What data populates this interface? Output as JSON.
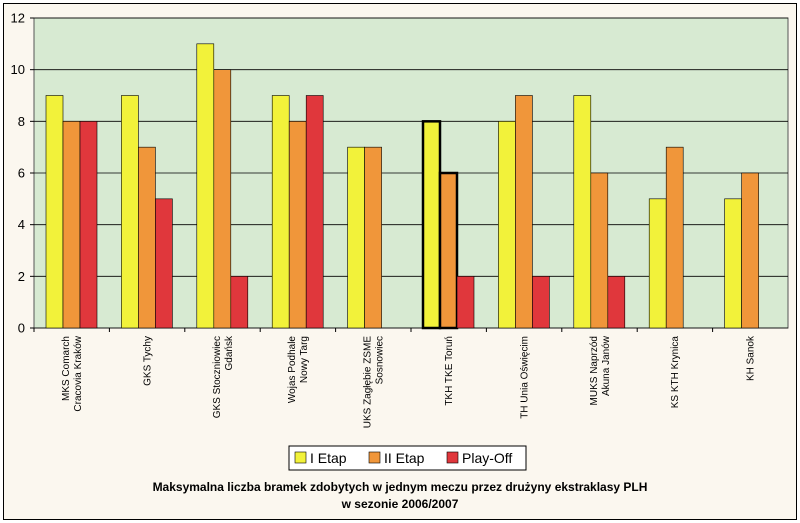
{
  "chart_data": {
    "type": "bar",
    "categories": [
      [
        "MKS Comarch",
        "Cracovia Kraków"
      ],
      [
        "GKS Tychy"
      ],
      [
        "GKS Stoczniowiec",
        "Gdańsk"
      ],
      [
        "Wojas Podhale",
        "Nowy Targ"
      ],
      [
        "UKS Zagłębie ZSME",
        "Sosnowiec"
      ],
      [
        "TKH TKE Toruń"
      ],
      [
        "TH Unia Oświęcim"
      ],
      [
        "MUKS Naprzód",
        "Akuna Janów"
      ],
      [
        "KS KTH Krynica"
      ],
      [
        "KH Sanok"
      ]
    ],
    "series": [
      {
        "name": "I Etap",
        "color": "#f2f23a",
        "values": [
          9,
          9,
          11,
          9,
          7,
          8,
          8,
          9,
          5,
          5
        ]
      },
      {
        "name": "II Etap",
        "color": "#f0963a",
        "values": [
          8,
          7,
          10,
          8,
          7,
          6,
          9,
          6,
          7,
          6
        ]
      },
      {
        "name": "Play-Off",
        "color": "#e0373c",
        "values": [
          8,
          5,
          2,
          9,
          null,
          2,
          2,
          2,
          null,
          null
        ]
      }
    ],
    "highlight_category_index": 5,
    "yticks": [
      0,
      2,
      4,
      6,
      8,
      10,
      12
    ],
    "ylim": [
      0,
      12
    ],
    "grid": true,
    "plot_background": "#d7ead2",
    "legend_position": "bottom-center",
    "title_lines": [
      "Maksymalna liczba bramek zdobytych w jednym meczu przez drużyny ekstraklasy PLH",
      "w sezonie 2006/2007"
    ]
  }
}
